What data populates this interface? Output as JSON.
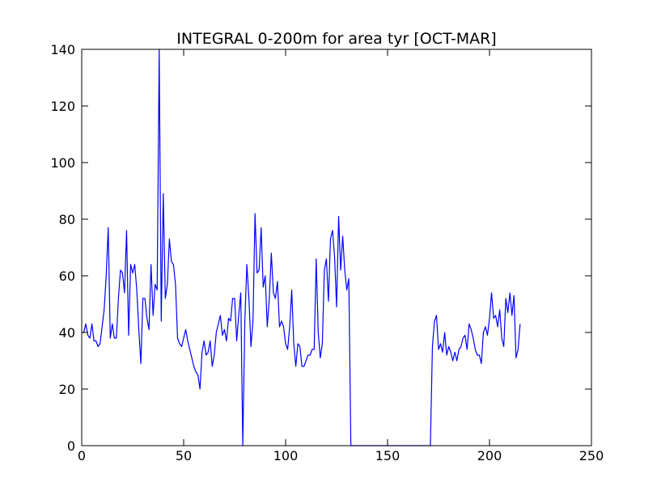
{
  "chart_data": {
    "type": "line",
    "title": "INTEGRAL 0-200m for area tyr [OCT-MAR]",
    "x": [
      0,
      1,
      2,
      3,
      4,
      5,
      6,
      7,
      8,
      9,
      10,
      11,
      12,
      13,
      14,
      15,
      16,
      17,
      18,
      19,
      20,
      21,
      22,
      23,
      24,
      25,
      26,
      27,
      28,
      29,
      30,
      31,
      32,
      33,
      34,
      35,
      36,
      37,
      38,
      39,
      40,
      41,
      42,
      43,
      44,
      45,
      46,
      47,
      48,
      49,
      50,
      51,
      52,
      53,
      54,
      55,
      56,
      57,
      58,
      59,
      60,
      61,
      62,
      63,
      64,
      65,
      66,
      67,
      68,
      69,
      70,
      71,
      72,
      73,
      74,
      75,
      76,
      77,
      78,
      79,
      80,
      81,
      82,
      83,
      84,
      85,
      86,
      87,
      88,
      89,
      90,
      91,
      92,
      93,
      94,
      95,
      96,
      97,
      98,
      99,
      100,
      101,
      102,
      103,
      104,
      105,
      106,
      107,
      108,
      109,
      110,
      111,
      112,
      113,
      114,
      115,
      116,
      117,
      118,
      119,
      120,
      121,
      122,
      123,
      124,
      125,
      126,
      127,
      128,
      129,
      130,
      131,
      132,
      133,
      134,
      135,
      136,
      137,
      138,
      139,
      140,
      141,
      142,
      143,
      144,
      145,
      146,
      147,
      148,
      149,
      150,
      151,
      152,
      153,
      154,
      155,
      156,
      157,
      158,
      159,
      160,
      161,
      162,
      163,
      164,
      165,
      166,
      167,
      168,
      169,
      170,
      171,
      172,
      173,
      174,
      175,
      176,
      177,
      178,
      179,
      180,
      181,
      182,
      183,
      184,
      185,
      186,
      187,
      188,
      189,
      190,
      191,
      192,
      193,
      194,
      195,
      196,
      197,
      198,
      199,
      200,
      201,
      202,
      203,
      204,
      205,
      206,
      207,
      208,
      209,
      210,
      211,
      212,
      213,
      214,
      215
    ],
    "series": [
      {
        "color": "#0000ff",
        "values": [
          40,
          40,
          43,
          39,
          38,
          43,
          37,
          37,
          35,
          36,
          42,
          48,
          60,
          77,
          38,
          43,
          38,
          38,
          52,
          62,
          61,
          54,
          76,
          39,
          64,
          61,
          64,
          55,
          41,
          29,
          52,
          52,
          45,
          41,
          64,
          46,
          57,
          55,
          140,
          44,
          89,
          52,
          57,
          73,
          65,
          64,
          57,
          38,
          36,
          35,
          38,
          41,
          37,
          34,
          31,
          28,
          26,
          25,
          20,
          33,
          37,
          32,
          33,
          37,
          28,
          32,
          40,
          43,
          46,
          39,
          41,
          37,
          45,
          44,
          52,
          52,
          37,
          46,
          54,
          0,
          44,
          64,
          52,
          35,
          44,
          82,
          61,
          62,
          77,
          56,
          60,
          42,
          52,
          68,
          54,
          52,
          58,
          42,
          44,
          42,
          36,
          34,
          42,
          55,
          36,
          28,
          36,
          35,
          28,
          28,
          30,
          32,
          32,
          34,
          34,
          66,
          40,
          31,
          36,
          62,
          66,
          51,
          73,
          76,
          67,
          49,
          81,
          62,
          74,
          62,
          55,
          59,
          0,
          0,
          0,
          0,
          0,
          0,
          0,
          0,
          0,
          0,
          0,
          0,
          0,
          0,
          0,
          0,
          0,
          0,
          0,
          0,
          0,
          0,
          0,
          0,
          0,
          0,
          0,
          0,
          0,
          0,
          0,
          0,
          0,
          0,
          0,
          0,
          0,
          0,
          0,
          0,
          35,
          44,
          46,
          34,
          36,
          33,
          40,
          32,
          35,
          33,
          30,
          33,
          30,
          34,
          35,
          38,
          39,
          34,
          43,
          41,
          38,
          34,
          32,
          32,
          29,
          40,
          42,
          39,
          45,
          54,
          45,
          46,
          42,
          48,
          38,
          35,
          52,
          47,
          54,
          46,
          53,
          31,
          34,
          43
        ]
      }
    ],
    "xlim": [
      0,
      250
    ],
    "ylim": [
      0,
      140
    ],
    "xticks": [
      0,
      50,
      100,
      150,
      200,
      250
    ],
    "yticks": [
      0,
      20,
      40,
      60,
      80,
      100,
      120,
      140
    ],
    "grid": false
  }
}
